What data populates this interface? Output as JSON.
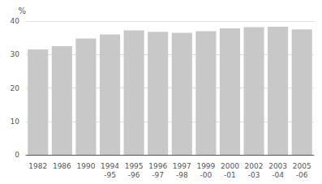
{
  "chart_data": {
    "type": "bar",
    "categories": [
      "1982",
      "1986",
      "1990",
      "1994\n-95",
      "1995\n-96",
      "1996\n-97",
      "1997\n-98",
      "1999\n-00",
      "2000\n-01",
      "2002\n-03",
      "2003\n-04",
      "2005\n-06"
    ],
    "values": [
      31.5,
      32.5,
      34.8,
      36.0,
      37.2,
      36.8,
      36.5,
      37.0,
      37.8,
      38.2,
      38.3,
      37.5
    ],
    "color": "#c8c8c8",
    "ylabel": "%",
    "ylim": [
      0,
      40
    ],
    "yticks": [
      0,
      10,
      20,
      30,
      40
    ],
    "grid": true
  }
}
